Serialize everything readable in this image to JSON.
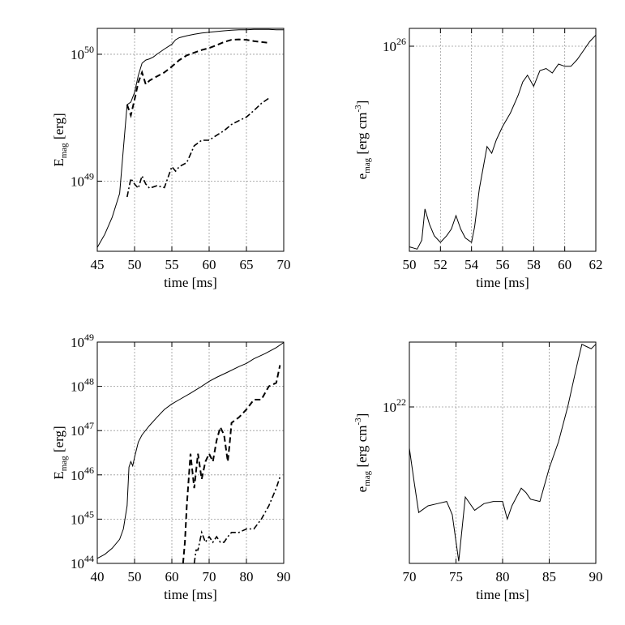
{
  "chart_data": [
    {
      "type": "line",
      "xlabel": "time [ms]",
      "ylabel_main": "E",
      "ylabel_sub": "mag",
      "ylabel_unit": " [erg]",
      "xlim": [
        45,
        70
      ],
      "ylim": [
        2.8e+48,
        1.6e+50
      ],
      "yscale": "log",
      "grid": true,
      "xticks": [
        45,
        50,
        55,
        60,
        65,
        70
      ],
      "yticks": [
        {
          "value": 1e+49,
          "base": "10",
          "exp": "49"
        },
        {
          "value": 1e+50,
          "base": "10",
          "exp": "50"
        }
      ],
      "series": [
        {
          "style": "solid",
          "x": [
            45,
            46,
            47,
            48,
            48.5,
            49,
            49.5,
            50,
            50.5,
            51,
            51.5,
            52,
            52.5,
            53,
            54,
            55,
            55.5,
            56,
            57,
            58,
            59,
            60,
            61,
            62,
            63,
            64,
            65,
            66,
            67,
            68,
            69,
            70
          ],
          "y": [
            3e+48,
            3.8e+48,
            5.2e+48,
            8e+48,
            1.8e+49,
            4e+49,
            4.2e+49,
            5e+49,
            6.8e+49,
            8.5e+49,
            9e+49,
            9.2e+49,
            9.5e+49,
            1e+50,
            1.1e+50,
            1.2e+50,
            1.3e+50,
            1.35e+50,
            1.4e+50,
            1.44e+50,
            1.47e+50,
            1.49e+50,
            1.51e+50,
            1.53e+50,
            1.55e+50,
            1.56e+50,
            1.56e+50,
            1.57e+50,
            1.57e+50,
            1.57e+50,
            1.56e+50,
            1.56e+50
          ]
        },
        {
          "style": "dashed",
          "x": [
            49,
            49.5,
            50,
            50.5,
            51,
            51.5,
            52,
            53,
            54,
            55,
            56,
            57,
            58,
            59,
            60,
            61,
            62,
            63,
            64,
            65,
            66,
            67,
            68
          ],
          "y": [
            4e+49,
            3.3e+49,
            4.4e+49,
            6e+49,
            7.2e+49,
            5.8e+49,
            6.2e+49,
            6.7e+49,
            7.2e+49,
            8e+49,
            9e+49,
            9.8e+49,
            1.03e+50,
            1.08e+50,
            1.12e+50,
            1.18e+50,
            1.25e+50,
            1.3e+50,
            1.31e+50,
            1.3e+50,
            1.27e+50,
            1.25e+50,
            1.23e+50
          ]
        },
        {
          "style": "dashdot",
          "x": [
            49,
            49.5,
            50,
            50.5,
            51,
            51.5,
            52,
            53,
            54,
            55,
            55.5,
            56,
            57,
            58,
            59,
            60,
            61,
            62,
            63,
            64,
            65,
            66,
            67,
            68
          ],
          "y": [
            7.5e+48,
            1.05e+49,
            9.5e+48,
            8.8e+48,
            1.1e+49,
            9.5e+48,
            8.8e+48,
            9.2e+48,
            8.9e+48,
            1.3e+49,
            1.2e+49,
            1.3e+49,
            1.4e+49,
            1.9e+49,
            2.1e+49,
            2.1e+49,
            2.3e+49,
            2.5e+49,
            2.8e+49,
            3e+49,
            3.2e+49,
            3.6e+49,
            4.1e+49,
            4.5e+49
          ]
        }
      ]
    },
    {
      "type": "line",
      "xlabel": "time [ms]",
      "ylabel_main": "e",
      "ylabel_sub": "mag",
      "ylabel_unit": " [erg cm",
      "ylabel_sup": "-3",
      "ylabel_close": "]",
      "xlim": [
        50,
        62
      ],
      "ylim": [
        0,
        1
      ],
      "yscale": "log",
      "grid": true,
      "xticks": [
        50,
        52,
        54,
        56,
        58,
        60,
        62
      ],
      "yticks": [
        {
          "value": 0.92,
          "base": "10",
          "exp": "26"
        }
      ],
      "series": [
        {
          "style": "solid",
          "x": [
            50,
            50.5,
            50.8,
            51,
            51.3,
            51.6,
            52,
            52.4,
            52.7,
            53,
            53.3,
            53.6,
            54,
            54.2,
            54.5,
            55,
            55.3,
            55.6,
            56,
            56.5,
            57,
            57.3,
            57.6,
            58,
            58.4,
            58.8,
            59.2,
            59.6,
            60,
            60.4,
            60.8,
            61.2,
            61.6,
            62
          ],
          "y": [
            0.02,
            0.01,
            0.05,
            0.19,
            0.12,
            0.07,
            0.04,
            0.07,
            0.1,
            0.16,
            0.1,
            0.06,
            0.04,
            0.11,
            0.28,
            0.47,
            0.44,
            0.5,
            0.56,
            0.62,
            0.7,
            0.76,
            0.79,
            0.74,
            0.81,
            0.82,
            0.8,
            0.84,
            0.83,
            0.83,
            0.86,
            0.9,
            0.94,
            0.97
          ]
        }
      ]
    },
    {
      "type": "line",
      "xlabel": "time [ms]",
      "ylabel_main": "E",
      "ylabel_sub": "mag",
      "ylabel_unit": " [erg]",
      "xlim": [
        40,
        90
      ],
      "ylim": [
        1e+44,
        1e+49
      ],
      "yscale": "log",
      "grid": true,
      "xticks": [
        40,
        50,
        60,
        70,
        80,
        90
      ],
      "yticks": [
        {
          "value": 1e+44,
          "base": "10",
          "exp": "44"
        },
        {
          "value": 1e+45,
          "base": "10",
          "exp": "45"
        },
        {
          "value": 1e+46,
          "base": "10",
          "exp": "46"
        },
        {
          "value": 1e+47,
          "base": "10",
          "exp": "47"
        },
        {
          "value": 1e+48,
          "base": "10",
          "exp": "48"
        },
        {
          "value": 1e+49,
          "base": "10",
          "exp": "49"
        }
      ],
      "series": [
        {
          "style": "solid",
          "x": [
            40,
            42,
            44,
            46,
            47,
            48,
            48.5,
            49,
            49.5,
            50,
            51,
            52,
            54,
            56,
            58,
            60,
            62,
            65,
            68,
            70,
            72,
            75,
            78,
            80,
            82,
            85,
            88,
            90
          ],
          "y": [
            1.3e+44,
            1.6e+44,
            2.2e+44,
            3.5e+44,
            6e+44,
            2e+45,
            1.5e+46,
            2e+46,
            1.6e+46,
            2.5e+46,
            5.5e+46,
            8e+46,
            1.3e+47,
            2e+47,
            3e+47,
            4e+47,
            5e+47,
            7e+47,
            1e+48,
            1.3e+48,
            1.6e+48,
            2.1e+48,
            2.8e+48,
            3.3e+48,
            4.2e+48,
            5.5e+48,
            7.5e+48,
            9.8e+48
          ]
        },
        {
          "style": "dashed",
          "x": [
            63,
            63.5,
            64,
            65,
            66,
            67,
            68,
            69,
            70,
            71,
            72,
            73,
            74,
            75,
            75.5,
            76,
            78,
            80,
            82,
            84,
            86,
            88,
            89
          ],
          "y": [
            8e+43,
            3e+44,
            2e+45,
            3e+46,
            5e+45,
            3e+46,
            8e+45,
            2e+46,
            3e+46,
            2e+46,
            6e+46,
            1.2e+47,
            8e+46,
            2e+46,
            5e+46,
            1.5e+47,
            2e+47,
            3e+47,
            5e+47,
            5e+47,
            1e+48,
            1.2e+48,
            3e+48
          ]
        },
        {
          "style": "dashdot",
          "x": [
            66,
            66.5,
            67,
            68,
            69,
            70,
            71,
            72,
            73,
            74,
            75,
            76,
            78,
            80,
            82,
            84,
            86,
            88,
            89
          ],
          "y": [
            5e+43,
            2e+44,
            2e+44,
            5e+44,
            3e+44,
            4e+44,
            3e+44,
            4e+44,
            3e+44,
            3e+44,
            4e+44,
            5e+44,
            5e+44,
            6e+44,
            6e+44,
            1e+45,
            2e+45,
            5e+45,
            9e+45
          ]
        }
      ]
    },
    {
      "type": "line",
      "xlabel": "time [ms]",
      "ylabel_main": "e",
      "ylabel_sub": "mag",
      "ylabel_unit": " [erg cm",
      "ylabel_sup": "-3",
      "ylabel_close": "]",
      "xlim": [
        70,
        90
      ],
      "ylim": [
        0,
        1
      ],
      "yscale": "log",
      "grid": true,
      "xticks": [
        70,
        75,
        80,
        85,
        90
      ],
      "yticks": [
        {
          "value": 0.707,
          "base": "10",
          "exp": "22"
        }
      ],
      "series": [
        {
          "style": "solid",
          "x": [
            70,
            70.5,
            71,
            72,
            73,
            74,
            74.6,
            75.3,
            76,
            77,
            78,
            79,
            80,
            80.5,
            81,
            82,
            82.5,
            83,
            84,
            85,
            86,
            87,
            88,
            88.5,
            89,
            89.5,
            90
          ],
          "y": [
            0.52,
            0.37,
            0.23,
            0.26,
            0.27,
            0.28,
            0.22,
            0.01,
            0.3,
            0.24,
            0.27,
            0.28,
            0.28,
            0.2,
            0.26,
            0.34,
            0.32,
            0.29,
            0.28,
            0.43,
            0.55,
            0.71,
            0.9,
            0.99,
            0.98,
            0.97,
            0.99
          ]
        }
      ]
    }
  ]
}
